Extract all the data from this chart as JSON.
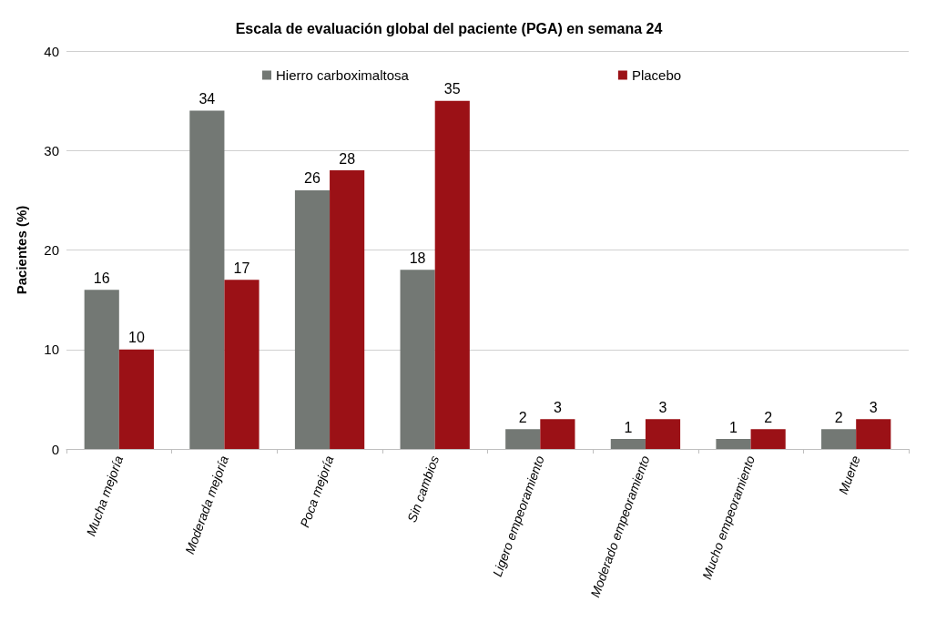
{
  "chart_data": {
    "type": "bar",
    "title": "Escala de evaluación global del paciente (PGA) en semana 24",
    "ylabel": "Pacientes (%)",
    "categories": [
      "Mucha mejoría",
      "Moderada mejoría",
      "Poca mejoría",
      "Sin cambios",
      "Ligero empeoramiento",
      "Moderado empeoramiento",
      "Mucho empeoramiento",
      "Muerte"
    ],
    "series": [
      {
        "name": "Hierro carboximaltosa",
        "color": "#737874",
        "values": [
          16,
          34,
          26,
          18,
          2,
          1,
          1,
          2
        ]
      },
      {
        "name": "Placebo",
        "color": "#9b1116",
        "values": [
          10,
          17,
          28,
          35,
          3,
          3,
          2,
          3
        ]
      }
    ],
    "ylim": [
      0,
      40
    ],
    "yticks": [
      0,
      10,
      20,
      30,
      40
    ],
    "grid": "y",
    "legend": "top",
    "data_labels": true
  }
}
